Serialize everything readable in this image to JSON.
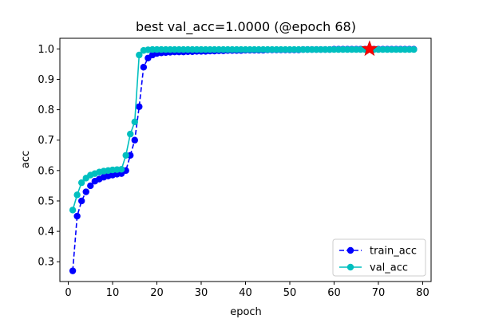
{
  "chart_data": {
    "type": "line",
    "title": "best val_acc=1.0000 (@epoch 68)",
    "xlabel": "epoch",
    "ylabel": "acc",
    "xlim": [
      -1.9,
      81.9
    ],
    "ylim": [
      0.235,
      1.035
    ],
    "xticks": [
      0,
      10,
      20,
      30,
      40,
      50,
      60,
      70,
      80
    ],
    "yticks": [
      0.3,
      0.4,
      0.5,
      0.6,
      0.7,
      0.8,
      0.9,
      1.0
    ],
    "legend_position": "lower-right",
    "grid": false,
    "x": [
      1,
      2,
      3,
      4,
      5,
      6,
      7,
      8,
      9,
      10,
      11,
      12,
      13,
      14,
      15,
      16,
      17,
      18,
      19,
      20,
      21,
      22,
      23,
      24,
      25,
      26,
      27,
      28,
      29,
      30,
      31,
      32,
      33,
      34,
      35,
      36,
      37,
      38,
      39,
      40,
      41,
      42,
      43,
      44,
      45,
      46,
      47,
      48,
      49,
      50,
      51,
      52,
      53,
      54,
      55,
      56,
      57,
      58,
      59,
      60,
      61,
      62,
      63,
      64,
      65,
      66,
      67,
      68,
      69,
      70,
      71,
      72,
      73,
      74,
      75,
      76,
      77,
      78
    ],
    "series": [
      {
        "name": "train_acc",
        "color": "#0000ff",
        "linestyle": "dashed",
        "marker": "circle",
        "values": [
          0.27,
          0.45,
          0.5,
          0.53,
          0.55,
          0.565,
          0.572,
          0.578,
          0.582,
          0.585,
          0.588,
          0.59,
          0.6,
          0.65,
          0.7,
          0.81,
          0.94,
          0.97,
          0.98,
          0.985,
          0.987,
          0.988,
          0.989,
          0.99,
          0.99,
          0.99,
          0.991,
          0.991,
          0.992,
          0.992,
          0.992,
          0.993,
          0.993,
          0.994,
          0.994,
          0.995,
          0.995,
          0.995,
          0.995,
          0.996,
          0.996,
          0.996,
          0.996,
          0.996,
          0.997,
          0.997,
          0.997,
          0.997,
          0.997,
          0.997,
          0.997,
          0.997,
          0.998,
          0.998,
          0.998,
          0.998,
          0.998,
          0.998,
          0.998,
          0.999,
          0.999,
          0.999,
          0.999,
          0.999,
          0.999,
          0.999,
          0.999,
          0.999,
          0.999,
          0.999,
          0.999,
          0.999,
          0.999,
          0.999,
          0.999,
          0.999,
          0.999,
          0.999
        ]
      },
      {
        "name": "val_acc",
        "color": "#00bfbf",
        "linestyle": "solid",
        "marker": "circle",
        "values": [
          0.47,
          0.52,
          0.56,
          0.575,
          0.585,
          0.59,
          0.595,
          0.598,
          0.6,
          0.602,
          0.603,
          0.604,
          0.65,
          0.72,
          0.76,
          0.98,
          0.995,
          0.997,
          0.998,
          0.998,
          0.998,
          0.998,
          0.998,
          0.998,
          0.998,
          0.998,
          0.998,
          0.998,
          0.998,
          0.998,
          0.998,
          0.998,
          0.998,
          0.998,
          0.998,
          0.998,
          0.998,
          0.998,
          0.998,
          0.998,
          0.998,
          0.998,
          0.998,
          0.998,
          0.998,
          0.998,
          0.998,
          0.998,
          0.998,
          0.998,
          0.998,
          0.998,
          0.998,
          0.998,
          0.998,
          0.998,
          0.998,
          0.998,
          0.998,
          0.998,
          0.998,
          0.998,
          0.998,
          0.998,
          0.998,
          0.998,
          0.998,
          1.0,
          0.998,
          0.998,
          0.998,
          0.998,
          0.998,
          0.998,
          0.998,
          0.998,
          0.998,
          0.998
        ]
      }
    ],
    "best_marker": {
      "x": 68,
      "y": 1.0,
      "color": "#ff0000",
      "marker": "star"
    }
  }
}
